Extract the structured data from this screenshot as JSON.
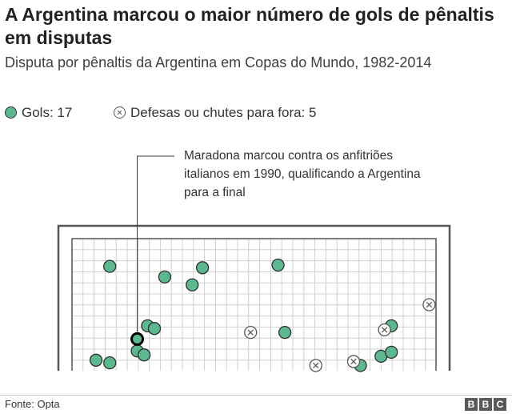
{
  "header": {
    "title": "A Argentina marcou o maior número de gols de pênaltis em disputas",
    "subtitle": "Disputa por pênaltis da Argentina em Copas do Mundo, 1982-2014"
  },
  "legend": {
    "goals_label": "Gols: 17",
    "misses_label": "Defesas ou chutes para fora: 5"
  },
  "annotation": "Maradona marcou contra os anfitriões italianos em 1990, qualificando a Argentina para a final",
  "footer": {
    "source": "Fonte: Opta",
    "brand_letters": [
      "B",
      "B",
      "C"
    ]
  },
  "colors": {
    "goal_fill": "#5cb98f",
    "goal_stroke": "#2e2e2e",
    "miss_stroke": "#555555",
    "frame": "#555555",
    "net": "#d0d0d0",
    "brand": "#5a5a5a"
  },
  "chart_data": {
    "type": "scatter",
    "description_units": "goal-mouth position (0-100 across the goal, 0-100 up from the ground; values outside 0-100 lie outside the posts)",
    "x_range": [
      -3,
      103
    ],
    "y_range": [
      0,
      100
    ],
    "series": [
      {
        "name": "Gols",
        "marker": "filled-circle",
        "points": [
          {
            "x": 8,
            "y": 79
          },
          {
            "x": 24,
            "y": 71
          },
          {
            "x": 32,
            "y": 65
          },
          {
            "x": 57,
            "y": 80
          },
          {
            "x": 35,
            "y": 78
          },
          {
            "x": 19,
            "y": 34
          },
          {
            "x": 21,
            "y": 32
          },
          {
            "x": 59,
            "y": 29
          },
          {
            "x": 16,
            "y": 15
          },
          {
            "x": 18,
            "y": 12
          },
          {
            "x": 4,
            "y": 8
          },
          {
            "x": 8,
            "y": 6
          },
          {
            "x": 81,
            "y": 4
          },
          {
            "x": 87,
            "y": 11
          },
          {
            "x": 90,
            "y": 14
          },
          {
            "x": 90,
            "y": 34
          },
          {
            "x": 16,
            "y": 24,
            "highlight": true
          }
        ]
      },
      {
        "name": "Defesas ou chutes para fora",
        "marker": "circle-x",
        "points": [
          {
            "x": 49,
            "y": 29
          },
          {
            "x": 68,
            "y": 4
          },
          {
            "x": 79,
            "y": 7
          },
          {
            "x": 88,
            "y": 31
          },
          {
            "x": 101,
            "y": 50
          }
        ]
      }
    ]
  }
}
